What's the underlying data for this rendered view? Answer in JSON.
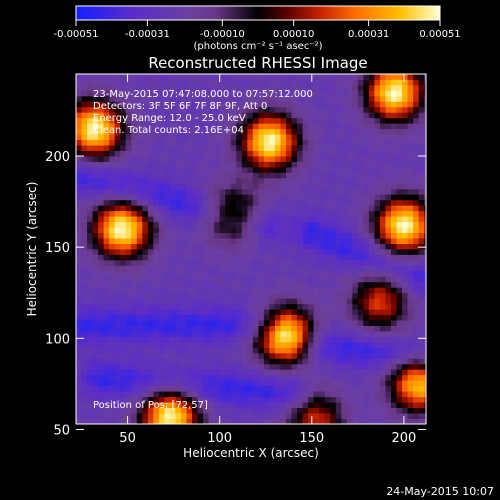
{
  "chart_data": {
    "type": "heatmap",
    "title": "Reconstructed RHESSI Image",
    "xlabel": "Heliocentric X (arcsec)",
    "ylabel": "Heliocentric Y (arcsec)",
    "xlim": [
      22,
      212
    ],
    "ylim": [
      53,
      245
    ],
    "x_ticks": [
      50,
      100,
      150,
      200
    ],
    "y_ticks": [
      50,
      100,
      150,
      200
    ],
    "colorbar": {
      "min": -0.00051,
      "max": 0.00051,
      "tick_values": [
        -0.00051,
        -0.00031,
        -0.0001,
        0.0001,
        0.00031,
        0.00051
      ],
      "tick_labels": [
        "-0.00051",
        "-0.00031",
        "-0.00010",
        "0.00010",
        "0.00031",
        "0.00051"
      ],
      "unit_text": "(photons cm⁻² s⁻¹ asec⁻²)"
    },
    "annotations": [
      "23-May-2015 07:47:08.000 to 07:57:12.000",
      "Detectors: 3F 5F 6F 7F 8F 9F, Att 0",
      "Energy Range: 12.0 - 25.0 keV",
      "Clean. Total counts: 2.16E+04"
    ],
    "position_label": "Position of Pos: [72,57]",
    "sources": [
      {
        "x": 32,
        "y": 215,
        "peak": 0.0005
      },
      {
        "x": 47,
        "y": 160,
        "peak": 0.00051
      },
      {
        "x": 73,
        "y": 57,
        "peak": 0.0005
      },
      {
        "x": 107,
        "y": 168,
        "peak": 0.00018
      },
      {
        "x": 127,
        "y": 208,
        "peak": 0.0005
      },
      {
        "x": 135,
        "y": 102,
        "peak": 0.0005
      },
      {
        "x": 152,
        "y": 55,
        "peak": 0.00018
      },
      {
        "x": 187,
        "y": 120,
        "peak": 0.0002
      },
      {
        "x": 195,
        "y": 235,
        "peak": 0.0005
      },
      {
        "x": 200,
        "y": 162,
        "peak": 0.0005
      },
      {
        "x": 208,
        "y": 75,
        "peak": 0.0004
      }
    ],
    "background_level": -0.00025,
    "negative_lanes": [
      {
        "x1": 22,
        "y1": 190,
        "x2": 125,
        "y2": 162
      },
      {
        "x1": 22,
        "y1": 107,
        "x2": 125,
        "y2": 108
      },
      {
        "x1": 150,
        "y1": 158,
        "x2": 212,
        "y2": 132
      },
      {
        "x1": 155,
        "y1": 96,
        "x2": 212,
        "y2": 90
      },
      {
        "x1": 35,
        "y1": 78,
        "x2": 140,
        "y2": 70
      }
    ],
    "colormap": [
      [
        -0.00051,
        "#1420ff"
      ],
      [
        -0.00035,
        "#5a2cc8"
      ],
      [
        -0.0002,
        "#6a40a0"
      ],
      [
        -0.00012,
        "#6a3888"
      ],
      [
        0.0,
        "#000000"
      ],
      [
        8e-05,
        "#5a0000"
      ],
      [
        0.00017,
        "#c42000"
      ],
      [
        0.00027,
        "#ff6a00"
      ],
      [
        0.0004,
        "#ffc000"
      ],
      [
        0.00051,
        "#ffffd8"
      ]
    ]
  },
  "timestamp": "24-May-2015 10:07"
}
